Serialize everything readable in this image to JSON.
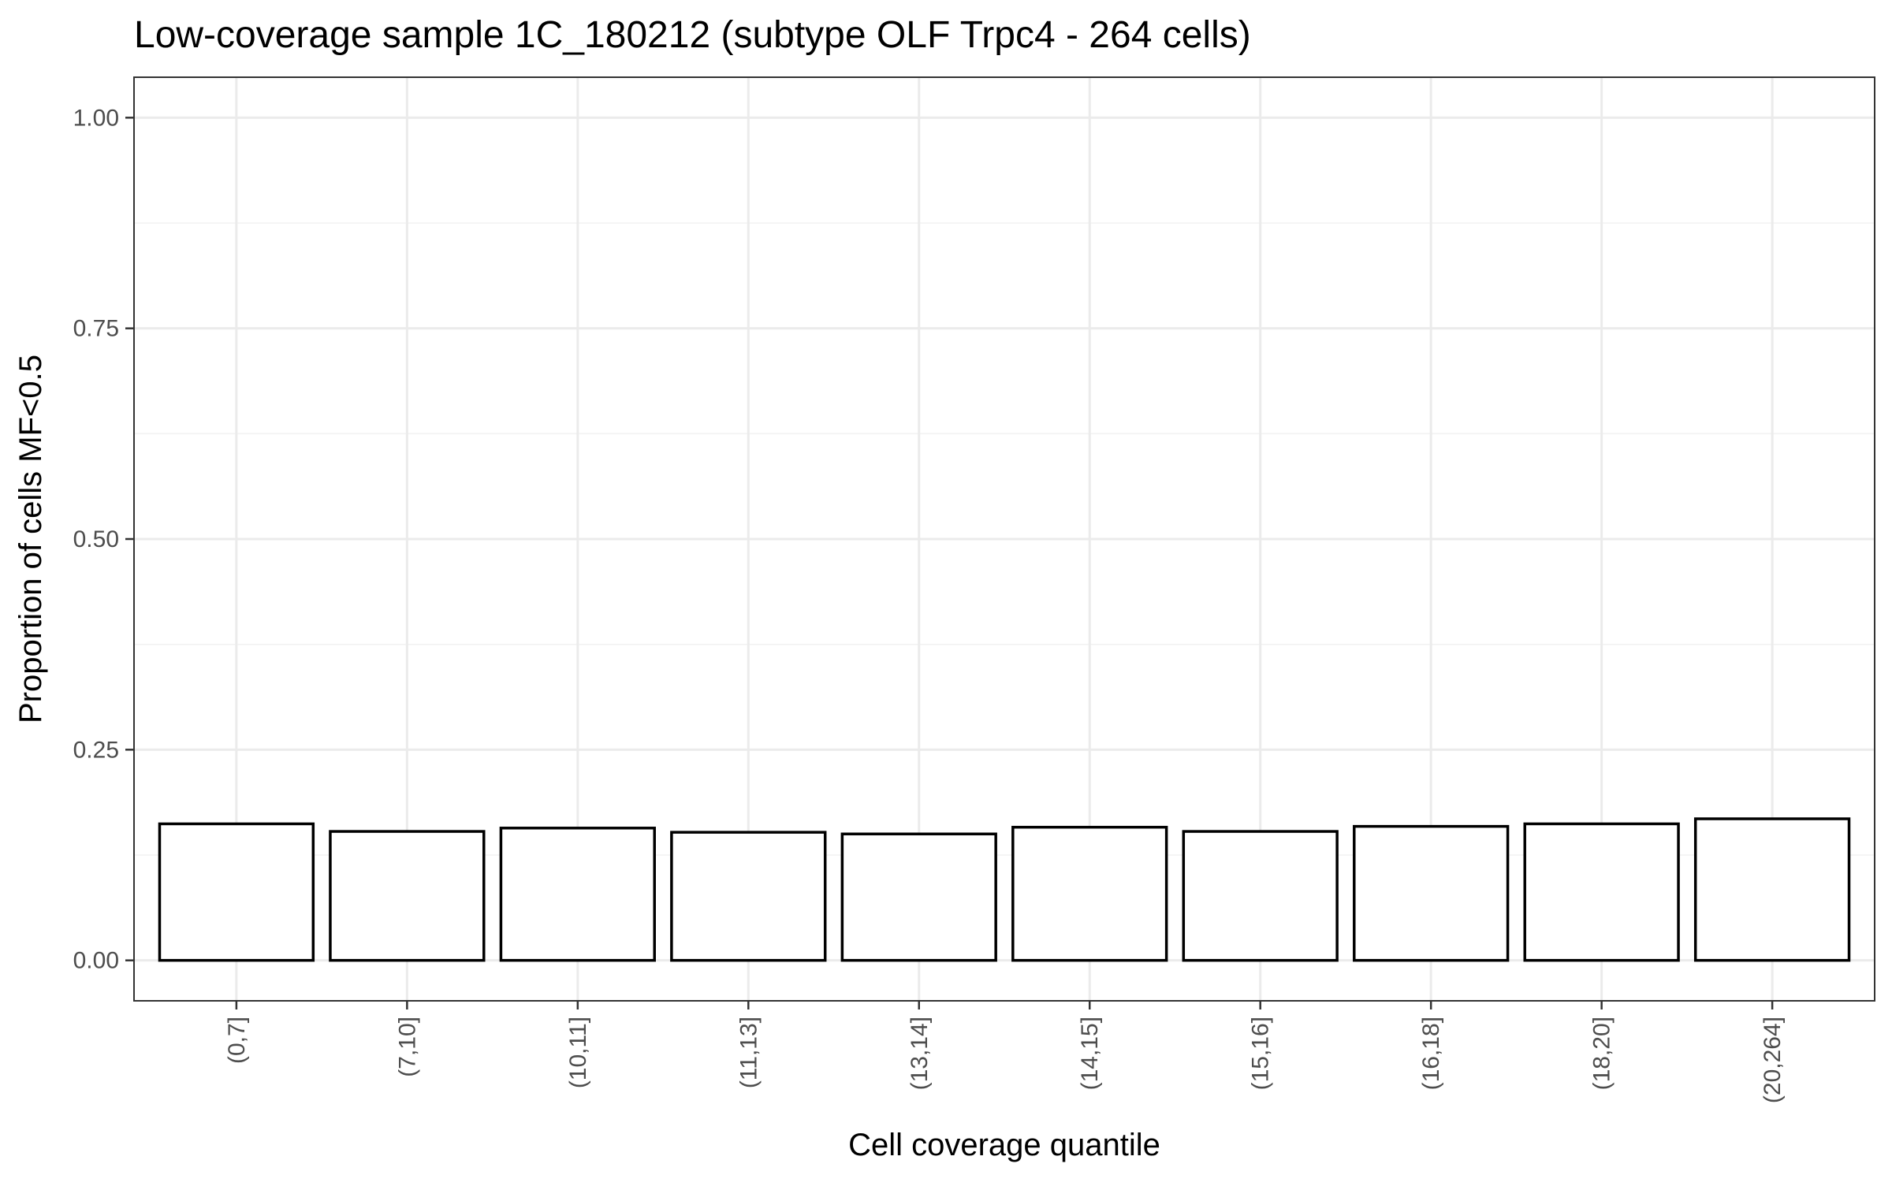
{
  "chart_data": {
    "type": "bar",
    "title": "Low-coverage sample 1C_180212 (subtype OLF Trpc4 - 264 cells)",
    "xlabel": "Cell coverage quantile",
    "ylabel": "Proportion of cells MF<0.5",
    "categories": [
      "(0,7]",
      "(7,10]",
      "(10,11]",
      "(11,13]",
      "(13,14]",
      "(14,15]",
      "(15,16]",
      "(16,18]",
      "(18,20]",
      "(20,264]"
    ],
    "values": [
      0.162,
      0.153,
      0.157,
      0.152,
      0.15,
      0.158,
      0.153,
      0.159,
      0.162,
      0.168
    ],
    "ylim": [
      -0.048,
      1.048
    ],
    "yticks": [
      0,
      0.25,
      0.5,
      0.75,
      1.0
    ],
    "ytick_labels": [
      "0.00",
      "0.25",
      "0.50",
      "0.75",
      "1.00"
    ],
    "grid": true,
    "theme": "bw",
    "bar_fill": "#ffffff",
    "bar_outline": "#000000"
  }
}
